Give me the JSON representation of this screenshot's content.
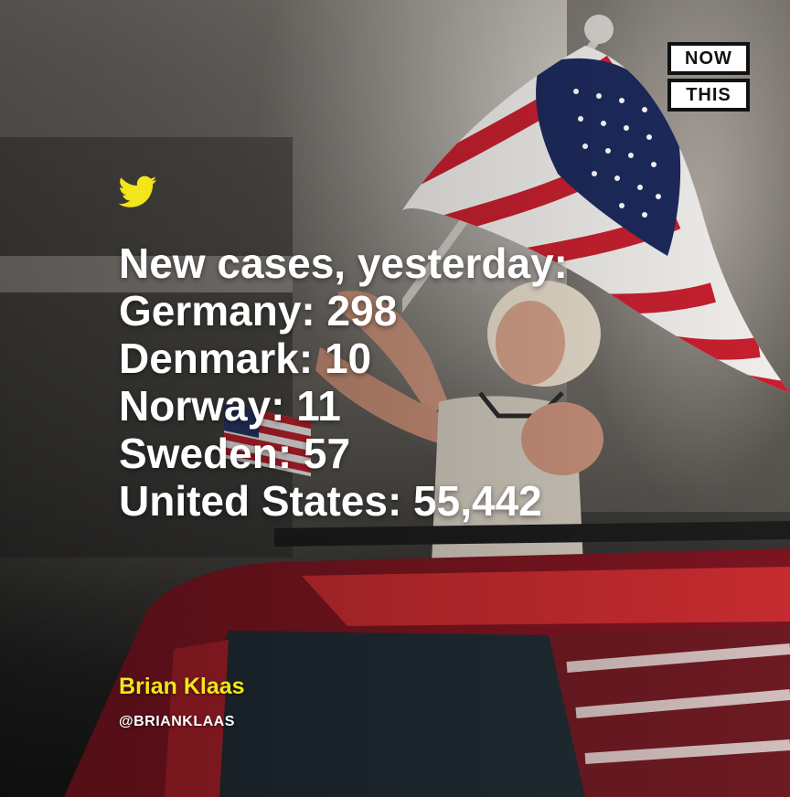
{
  "logo": {
    "line1": "NOW",
    "line2": "THIS"
  },
  "tweet": {
    "icon": "twitter-bird-icon",
    "lines": [
      "New cases, yesterday:",
      "Germany: 298",
      "Denmark: 10",
      "Norway: 11",
      "Sweden: 57",
      "United States: 55,442"
    ]
  },
  "author": {
    "name": "Brian Klaas",
    "handle": "@BRIANKLAAS"
  },
  "colors": {
    "accent_yellow": "#f2e61a",
    "flag_red": "#c8202f",
    "flag_blue": "#1d2a5c",
    "text": "#ffffff"
  }
}
